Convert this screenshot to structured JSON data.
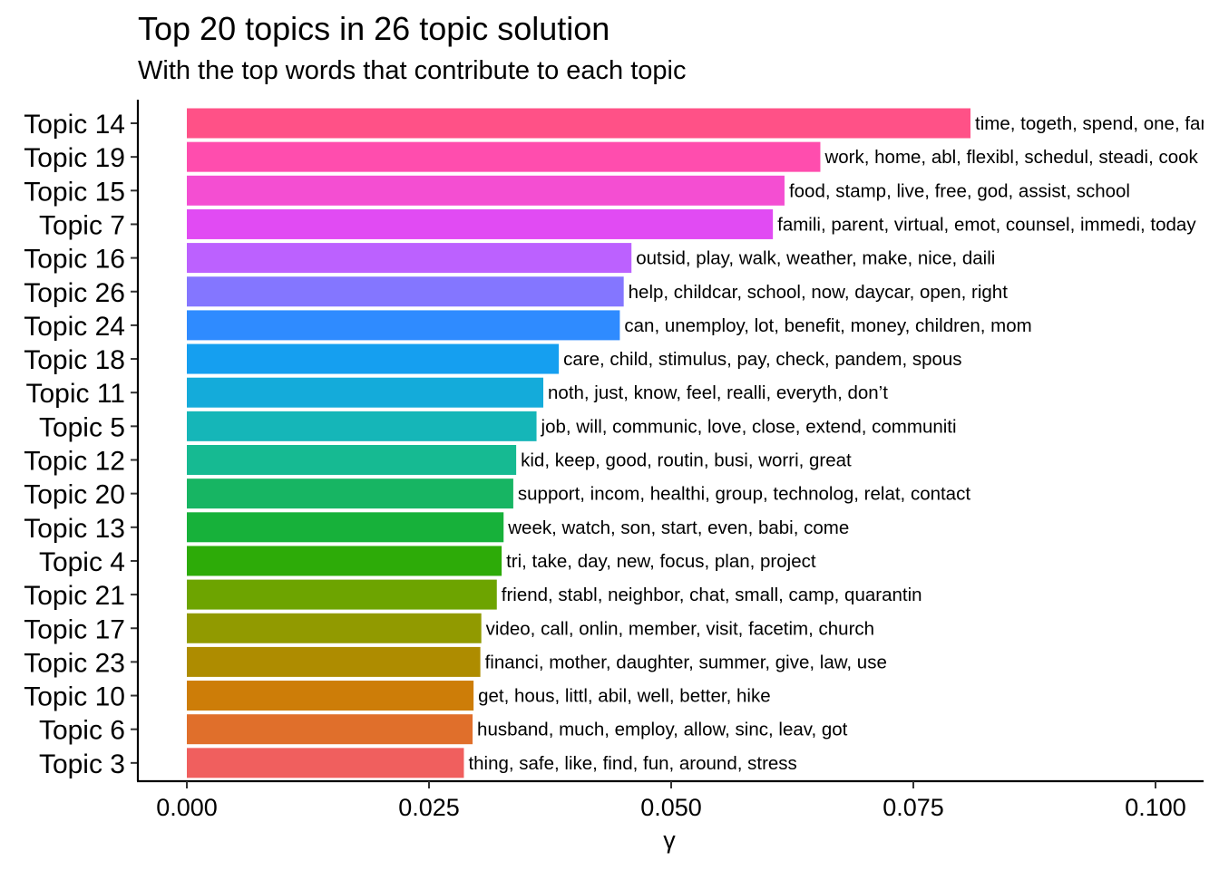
{
  "chart_data": {
    "type": "bar",
    "orientation": "horizontal",
    "title": "Top 20 topics in 26 topic solution",
    "subtitle": "With the top words that contribute to each topic",
    "xlabel": "γ",
    "ylabel": "",
    "xlim": [
      0,
      0.1
    ],
    "xticks": [
      "0.000",
      "0.025",
      "0.050",
      "0.075",
      "0.100"
    ],
    "grid": false,
    "categories": [
      "Topic 14",
      "Topic 19",
      "Topic 15",
      "Topic 7",
      "Topic 16",
      "Topic 26",
      "Topic 24",
      "Topic 18",
      "Topic 11",
      "Topic 5",
      "Topic 12",
      "Topic 20",
      "Topic 13",
      "Topic 4",
      "Topic 21",
      "Topic 17",
      "Topic 23",
      "Topic 10",
      "Topic 6",
      "Topic 3"
    ],
    "values": [
      0.0809,
      0.0654,
      0.0617,
      0.0605,
      0.0459,
      0.0451,
      0.0447,
      0.0384,
      0.0368,
      0.0361,
      0.034,
      0.0337,
      0.0327,
      0.0325,
      0.032,
      0.0304,
      0.0303,
      0.0296,
      0.0295,
      0.0286
    ],
    "labels": [
      "time, togeth, spend, one, famili",
      "work, home, abl, flexibl, schedul, steadi, cook",
      "food, stamp, live, free, god, assist, school",
      "famili, parent, virtual, emot, counsel, immedi, today",
      "outsid, play, walk, weather, make, nice, daili",
      "help, childcar, school, now, daycar, open, right",
      "can, unemploy, lot, benefit, money, children, mom",
      "care, child, stimulus, pay, check, pandem, spous",
      "noth, just, know, feel, realli, everyth, don’t",
      "job, will, communic, love, close, extend, communiti",
      "kid, keep, good, routin, busi, worri, great",
      "support, incom, healthi, group, technolog, relat, contact",
      "week, watch, son, start, even, babi, come",
      "tri, take, day, new, focus, plan, project",
      "friend, stabl, neighbor, chat, small, camp, quarantin",
      "video, call, onlin, member, visit, facetim, church",
      "financi, mother, daughter, summer, give, law, use",
      "get, hous, littl, abil, well, better, hike",
      "husband, much, employ, allow, sinc, leav, got",
      "thing, safe, like, find, fun, around, stress"
    ],
    "colors": [
      "#FF5187",
      "#FF4DAE",
      "#F44ED2",
      "#E14BF3",
      "#BC61FF",
      "#8476FF",
      "#2F8BFF",
      "#159FF0",
      "#14ABDA",
      "#15B6B8",
      "#16BA92",
      "#17B563",
      "#17B13A",
      "#2DAB08",
      "#6DA400",
      "#919A00",
      "#AE8C00",
      "#CD7D08",
      "#E06F2B",
      "#F05F5E"
    ],
    "legend": "none"
  }
}
